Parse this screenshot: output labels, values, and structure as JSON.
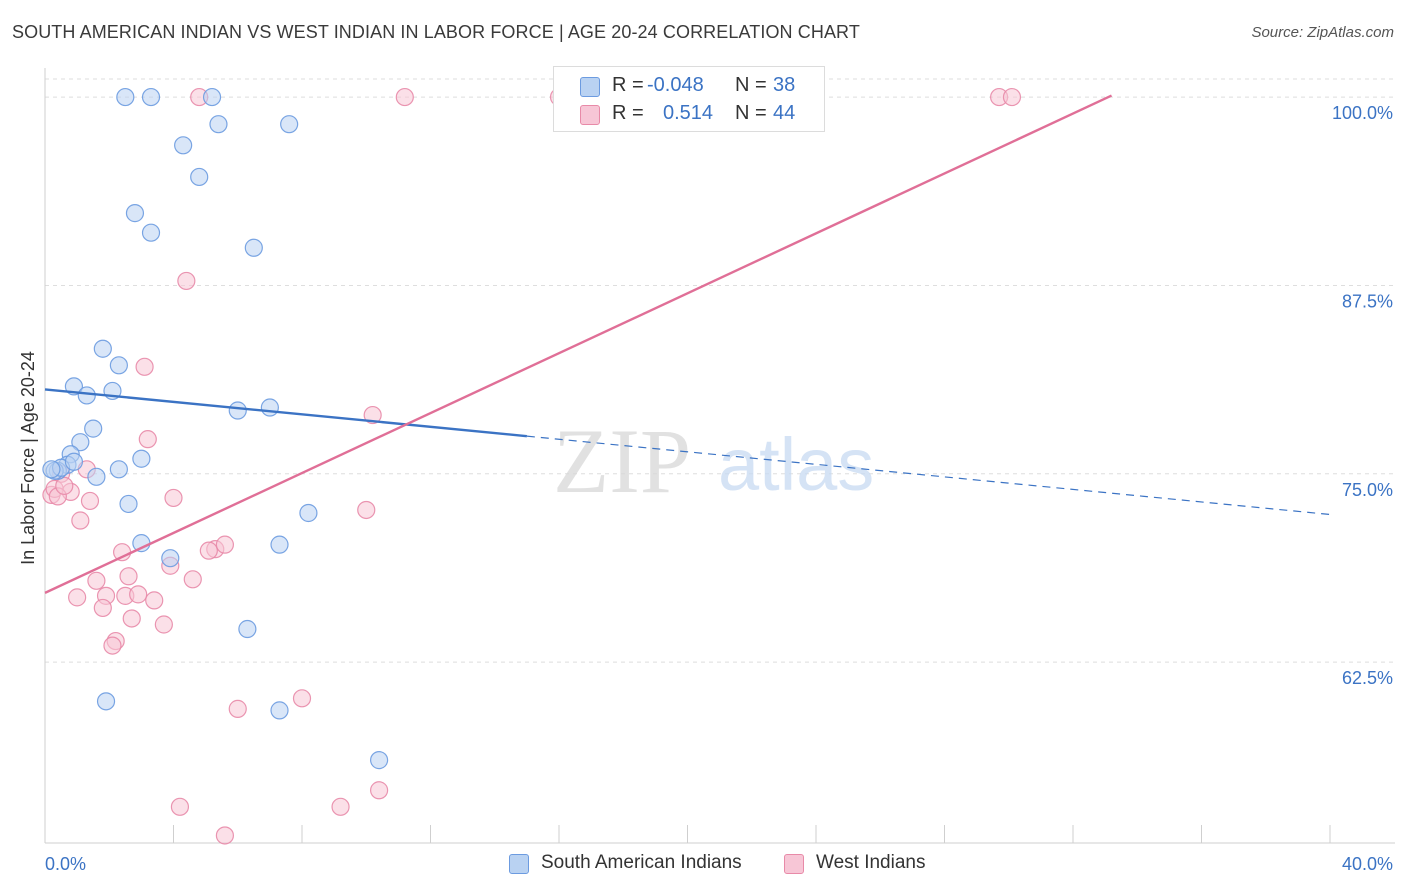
{
  "title": "SOUTH AMERICAN INDIAN VS WEST INDIAN IN LABOR FORCE | AGE 20-24 CORRELATION CHART",
  "source": "Source: ZipAtlas.com",
  "watermark": {
    "zip": "ZIP",
    "atlas": "atlas"
  },
  "legend": {
    "r_label": "R =",
    "n_label": "N =",
    "rows": [
      {
        "r": "-0.048",
        "n": "38",
        "color": "#a9c8f0",
        "border": "#5b8fd6"
      },
      {
        "r": "0.514",
        "n": "44",
        "color": "#f7bcd0",
        "border": "#e07fa0"
      }
    ]
  },
  "bottom_legend": [
    {
      "label": "South American Indians",
      "color": "#a9c8f0",
      "border": "#5b8fd6"
    },
    {
      "label": "West Indians",
      "color": "#f7bcd0",
      "border": "#e07fa0"
    }
  ],
  "chart_data": {
    "type": "scatter",
    "xlabel": "",
    "ylabel": "In Labor Force | Age 20-24",
    "xlim": [
      0,
      40
    ],
    "ylim": [
      50.5,
      101.2
    ],
    "x_tick_labels": [
      "0.0%",
      "40.0%"
    ],
    "y_ticks": [
      62.5,
      75.0,
      87.5,
      100.0
    ],
    "y_tick_labels": [
      "62.5%",
      "75.0%",
      "87.5%",
      "100.0%"
    ],
    "grid": true,
    "series": [
      {
        "name": "South American Indians",
        "color": "#6c9be0",
        "fill": "#b9d2f2",
        "points": [
          [
            2.5,
            100
          ],
          [
            3.3,
            100
          ],
          [
            5.2,
            100
          ],
          [
            5.4,
            98.2
          ],
          [
            7.6,
            98.2
          ],
          [
            4.3,
            96.8
          ],
          [
            4.8,
            94.7
          ],
          [
            2.8,
            92.3
          ],
          [
            3.3,
            91.0
          ],
          [
            6.5,
            90.0
          ],
          [
            1.8,
            83.3
          ],
          [
            2.3,
            82.2
          ],
          [
            0.9,
            80.8
          ],
          [
            1.3,
            80.2
          ],
          [
            2.1,
            80.5
          ],
          [
            6.0,
            79.2
          ],
          [
            7.0,
            79.4
          ],
          [
            1.5,
            78.0
          ],
          [
            1.1,
            77.1
          ],
          [
            0.8,
            76.3
          ],
          [
            0.7,
            75.6
          ],
          [
            0.4,
            75.2
          ],
          [
            1.6,
            74.8
          ],
          [
            2.3,
            75.3
          ],
          [
            3.0,
            76.0
          ],
          [
            2.6,
            73.0
          ],
          [
            8.2,
            72.4
          ],
          [
            3.0,
            70.4
          ],
          [
            7.3,
            70.3
          ],
          [
            3.9,
            69.4
          ],
          [
            6.3,
            64.7
          ],
          [
            1.9,
            59.9
          ],
          [
            7.3,
            59.3
          ],
          [
            10.4,
            56.0
          ],
          [
            0.3,
            75.2
          ],
          [
            0.5,
            75.4
          ],
          [
            0.2,
            75.3
          ],
          [
            0.9,
            75.8
          ]
        ],
        "trend": {
          "x0": 0,
          "y0": 80.6,
          "x1": 15.0,
          "y1": 77.5,
          "x2": 40,
          "y2": 72.3
        }
      },
      {
        "name": "West Indians",
        "color": "#e88aa8",
        "fill": "#f7c6d6",
        "points": [
          [
            4.8,
            100
          ],
          [
            11.2,
            100
          ],
          [
            29.7,
            100
          ],
          [
            30.1,
            100
          ],
          [
            16.0,
            100
          ],
          [
            4.4,
            87.8
          ],
          [
            3.1,
            82.1
          ],
          [
            10.2,
            78.9
          ],
          [
            3.2,
            77.3
          ],
          [
            1.3,
            75.3
          ],
          [
            0.5,
            75.0
          ],
          [
            0.8,
            73.8
          ],
          [
            0.2,
            73.6
          ],
          [
            1.4,
            73.2
          ],
          [
            4.0,
            73.4
          ],
          [
            10.0,
            72.6
          ],
          [
            1.1,
            71.9
          ],
          [
            2.4,
            69.8
          ],
          [
            5.3,
            70.0
          ],
          [
            5.1,
            69.9
          ],
          [
            5.6,
            70.3
          ],
          [
            3.9,
            68.9
          ],
          [
            1.6,
            67.9
          ],
          [
            4.6,
            68.0
          ],
          [
            2.6,
            68.2
          ],
          [
            1.0,
            66.8
          ],
          [
            1.9,
            66.9
          ],
          [
            2.5,
            66.9
          ],
          [
            2.9,
            67.0
          ],
          [
            3.4,
            66.6
          ],
          [
            1.8,
            66.1
          ],
          [
            2.7,
            65.4
          ],
          [
            3.7,
            65.0
          ],
          [
            2.2,
            63.9
          ],
          [
            2.1,
            63.6
          ],
          [
            6.0,
            59.4
          ],
          [
            8.0,
            60.1
          ],
          [
            4.2,
            52.9
          ],
          [
            9.2,
            52.9
          ],
          [
            10.4,
            54.0
          ],
          [
            5.6,
            51.0
          ],
          [
            0.3,
            74.0
          ],
          [
            0.4,
            73.5
          ],
          [
            0.6,
            74.2
          ]
        ],
        "trend": {
          "x0": 0,
          "y0": 67.1,
          "x1": 33.2,
          "y1": 100.1
        }
      }
    ]
  }
}
